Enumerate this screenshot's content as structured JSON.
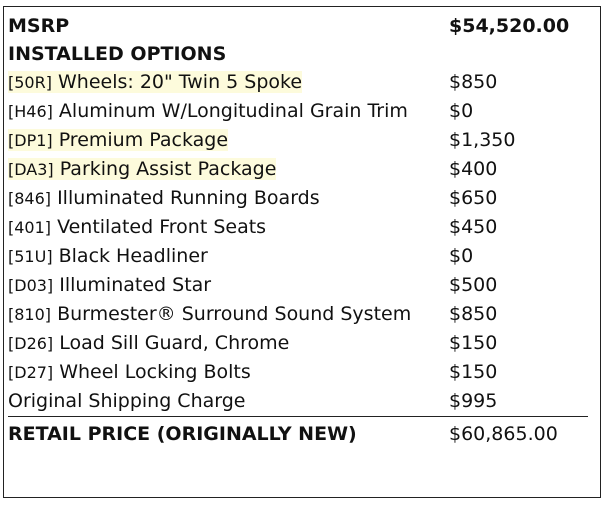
{
  "msrp": {
    "label": "MSRP",
    "value": "$54,520.00"
  },
  "installed_options_heading": "INSTALLED OPTIONS",
  "options": [
    {
      "code": "[50R]",
      "name": "Wheels: 20\" Twin 5 Spoke",
      "price": "$850",
      "highlighted": true
    },
    {
      "code": "[H46]",
      "name": "Aluminum W/Longitudinal Grain Trim",
      "price": "$0",
      "highlighted": false
    },
    {
      "code": "[DP1]",
      "name": "Premium Package",
      "price": "$1,350",
      "highlighted": true
    },
    {
      "code": "[DA3]",
      "name": "Parking Assist Package",
      "price": "$400",
      "highlighted": true
    },
    {
      "code": "[846]",
      "name": "Illuminated Running Boards",
      "price": "$650",
      "highlighted": false
    },
    {
      "code": "[401]",
      "name": "Ventilated Front Seats",
      "price": "$450",
      "highlighted": false
    },
    {
      "code": "[51U]",
      "name": "Black Headliner",
      "price": "$0",
      "highlighted": false
    },
    {
      "code": "[D03]",
      "name": "Illuminated Star",
      "price": "$500",
      "highlighted": false
    },
    {
      "code": "[810]",
      "name": "Burmester® Surround Sound System",
      "price": "$850",
      "highlighted": false
    },
    {
      "code": "[D26]",
      "name": "Load Sill Guard, Chrome",
      "price": "$150",
      "highlighted": false
    },
    {
      "code": "[D27]",
      "name": "Wheel Locking Bolts",
      "price": "$150",
      "highlighted": false
    }
  ],
  "shipping": {
    "label": "Original Shipping Charge",
    "value": "$995"
  },
  "retail": {
    "label": "RETAIL PRICE (ORIGINALLY NEW)",
    "value": "$60,865.00"
  },
  "colors": {
    "highlight": "#fdfbdc",
    "border": "#222222"
  }
}
